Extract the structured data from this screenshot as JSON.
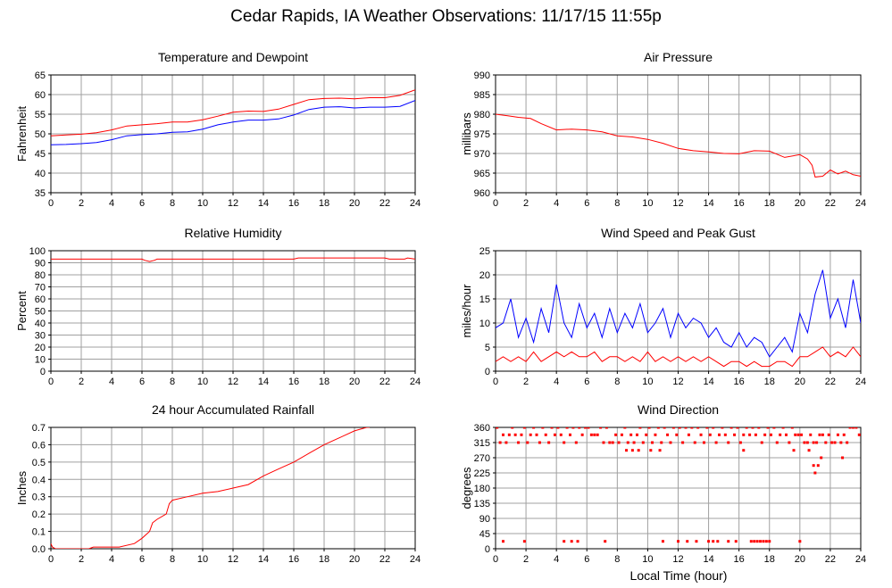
{
  "page": {
    "title": "Cedar Rapids, IA Weather Observations: 11/17/15 11:55p",
    "xlabel": "Local Time (hour)"
  },
  "chart_data": [
    {
      "type": "line",
      "title": "Temperature and Dewpoint",
      "ylabel": "Fahrenheit",
      "xlim": [
        0,
        24
      ],
      "ylim": [
        35,
        65
      ],
      "xticks": [
        0,
        2,
        4,
        6,
        8,
        10,
        12,
        14,
        16,
        18,
        20,
        22,
        24
      ],
      "yticks": [
        35,
        40,
        45,
        50,
        55,
        60,
        65
      ],
      "grid": true,
      "series": [
        {
          "color": "#ff0000",
          "x": [
            0,
            1,
            2,
            3,
            4,
            5,
            6,
            7,
            8,
            9,
            10,
            11,
            12,
            13,
            14,
            15,
            16,
            17,
            18,
            19,
            20,
            21,
            22,
            23,
            24
          ],
          "values": [
            49.5,
            49.7,
            49.9,
            50.3,
            51.0,
            52.0,
            52.3,
            52.6,
            53.0,
            53.0,
            53.6,
            54.5,
            55.5,
            55.8,
            55.7,
            56.3,
            57.5,
            58.7,
            59.0,
            59.1,
            58.9,
            59.2,
            59.2,
            59.8,
            61.2
          ]
        },
        {
          "color": "#0000ff",
          "x": [
            0,
            1,
            2,
            3,
            4,
            5,
            6,
            7,
            8,
            9,
            10,
            11,
            12,
            13,
            14,
            15,
            16,
            17,
            18,
            19,
            20,
            21,
            22,
            23,
            24
          ],
          "values": [
            47.2,
            47.3,
            47.5,
            47.8,
            48.5,
            49.5,
            49.8,
            50.0,
            50.4,
            50.5,
            51.2,
            52.3,
            53.0,
            53.5,
            53.5,
            53.8,
            54.8,
            56.2,
            56.8,
            56.9,
            56.6,
            56.8,
            56.8,
            57.0,
            58.5
          ]
        }
      ]
    },
    {
      "type": "line",
      "title": "Air Pressure",
      "ylabel": "millibars",
      "xlim": [
        0,
        24
      ],
      "ylim": [
        960,
        990
      ],
      "xticks": [
        0,
        2,
        4,
        6,
        8,
        10,
        12,
        14,
        16,
        18,
        20,
        22,
        24
      ],
      "yticks": [
        960,
        965,
        970,
        975,
        980,
        985,
        990
      ],
      "grid": true,
      "series": [
        {
          "color": "#ff0000",
          "x": [
            0,
            0.8,
            1.5,
            2.3,
            3.0,
            4.0,
            5.0,
            6.0,
            7.0,
            8.0,
            9.0,
            10.0,
            11.0,
            12.0,
            13.0,
            14.0,
            15.0,
            16.0,
            17.0,
            18.0,
            19.0,
            20.0,
            20.5,
            20.8,
            21.0,
            21.5,
            22.0,
            22.5,
            23.0,
            23.5,
            24.0
          ],
          "values": [
            980.0,
            979.6,
            979.2,
            978.9,
            977.6,
            976.0,
            976.2,
            976.0,
            975.5,
            974.5,
            974.2,
            973.6,
            972.6,
            971.3,
            970.7,
            970.4,
            970.0,
            969.9,
            970.7,
            970.6,
            969.0,
            969.7,
            968.6,
            967.0,
            964.0,
            964.2,
            965.8,
            964.8,
            965.5,
            964.6,
            964.2
          ]
        }
      ]
    },
    {
      "type": "line",
      "title": "Relative Humidity",
      "ylabel": "Percent",
      "xlim": [
        0,
        24
      ],
      "ylim": [
        0,
        100
      ],
      "xticks": [
        0,
        2,
        4,
        6,
        8,
        10,
        12,
        14,
        16,
        18,
        20,
        22,
        24
      ],
      "yticks": [
        0,
        10,
        20,
        30,
        40,
        50,
        60,
        70,
        80,
        90,
        100
      ],
      "grid": true,
      "series": [
        {
          "color": "#ff0000",
          "x": [
            0,
            6.0,
            6.2,
            6.5,
            6.8,
            7.0,
            16.0,
            16.3,
            22.0,
            22.3,
            23.3,
            23.5,
            24.0
          ],
          "values": [
            93,
            93,
            92,
            91,
            92,
            93,
            93,
            94,
            94,
            93,
            93,
            94,
            93
          ]
        }
      ]
    },
    {
      "type": "line",
      "title": "Wind Speed and Peak Gust",
      "ylabel": "miles/hour",
      "xlim": [
        0,
        24
      ],
      "ylim": [
        0,
        25
      ],
      "xticks": [
        0,
        2,
        4,
        6,
        8,
        10,
        12,
        14,
        16,
        18,
        20,
        22,
        24
      ],
      "yticks": [
        0,
        5,
        10,
        15,
        20,
        25
      ],
      "grid": true,
      "series": [
        {
          "color": "#0000ff",
          "x": [
            0,
            0.5,
            1.0,
            1.5,
            2.0,
            2.5,
            3.0,
            3.5,
            4.0,
            4.5,
            5.0,
            5.5,
            6.0,
            6.5,
            7.0,
            7.5,
            8.0,
            8.5,
            9.0,
            9.5,
            10.0,
            10.5,
            11.0,
            11.5,
            12.0,
            12.5,
            13.0,
            13.5,
            14.0,
            14.5,
            15.0,
            15.5,
            16.0,
            16.5,
            17.0,
            17.5,
            18.0,
            18.5,
            19.0,
            19.5,
            20.0,
            20.5,
            21.0,
            21.5,
            22.0,
            22.5,
            23.0,
            23.5,
            24.0
          ],
          "values": [
            9,
            10,
            15,
            7,
            11,
            6,
            13,
            8,
            18,
            10,
            7,
            14,
            9,
            12,
            7,
            13,
            8,
            12,
            9,
            14,
            8,
            10,
            13,
            7,
            12,
            9,
            11,
            10,
            7,
            9,
            6,
            5,
            8,
            5,
            7,
            6,
            3,
            5,
            7,
            4,
            12,
            8,
            16,
            21,
            11,
            15,
            9,
            19,
            10
          ]
        },
        {
          "color": "#ff0000",
          "x": [
            0,
            0.5,
            1.0,
            1.5,
            2.0,
            2.5,
            3.0,
            3.5,
            4.0,
            4.5,
            5.0,
            5.5,
            6.0,
            6.5,
            7.0,
            7.5,
            8.0,
            8.5,
            9.0,
            9.5,
            10.0,
            10.5,
            11.0,
            11.5,
            12.0,
            12.5,
            13.0,
            13.5,
            14.0,
            14.5,
            15.0,
            15.5,
            16.0,
            16.5,
            17.0,
            17.5,
            18.0,
            18.5,
            19.0,
            19.5,
            20.0,
            20.5,
            21.0,
            21.5,
            22.0,
            22.5,
            23.0,
            23.5,
            24.0
          ],
          "values": [
            2,
            3,
            2,
            3,
            2,
            4,
            2,
            3,
            4,
            3,
            4,
            3,
            3,
            4,
            2,
            3,
            3,
            2,
            3,
            2,
            4,
            2,
            3,
            2,
            3,
            2,
            3,
            2,
            3,
            2,
            1,
            2,
            2,
            1,
            2,
            1,
            1,
            2,
            2,
            1,
            3,
            3,
            4,
            5,
            3,
            4,
            3,
            5,
            3
          ]
        }
      ]
    },
    {
      "type": "line",
      "title": "24 hour Accumulated Rainfall",
      "ylabel": "Inches",
      "xlim": [
        0,
        24
      ],
      "ylim": [
        0,
        0.7
      ],
      "xticks": [
        0,
        2,
        4,
        6,
        8,
        10,
        12,
        14,
        16,
        18,
        20,
        22,
        24
      ],
      "yticks": [
        0,
        0.1,
        0.2,
        0.3,
        0.4,
        0.5,
        0.6,
        0.7
      ],
      "yticklabels": [
        "0.0",
        "0.1",
        "0.2",
        "0.3",
        "0.4",
        "0.5",
        "0.6",
        "0.7"
      ],
      "grid": true,
      "series": [
        {
          "color": "#ff0000",
          "x": [
            0,
            0.1,
            0.3,
            2.5,
            2.8,
            4.5,
            5.5,
            6.0,
            6.5,
            6.7,
            7.0,
            7.6,
            7.8,
            8.0,
            9.0,
            10.0,
            11.0,
            12.0,
            13.0,
            14.0,
            15.0,
            16.0,
            17.0,
            18.0,
            19.0,
            20.0,
            20.8,
            21.0
          ],
          "values": [
            0.03,
            0.01,
            0.0,
            0.0,
            0.01,
            0.01,
            0.03,
            0.06,
            0.1,
            0.15,
            0.17,
            0.2,
            0.26,
            0.28,
            0.3,
            0.32,
            0.33,
            0.35,
            0.37,
            0.42,
            0.46,
            0.5,
            0.55,
            0.6,
            0.64,
            0.68,
            0.7,
            0.7
          ]
        }
      ]
    },
    {
      "type": "scatter",
      "title": "Wind Direction",
      "ylabel": "degrees",
      "xlim": [
        0,
        24
      ],
      "ylim": [
        0,
        360
      ],
      "xticks": [
        0,
        2,
        4,
        6,
        8,
        10,
        12,
        14,
        16,
        18,
        20,
        22,
        24
      ],
      "yticks": [
        0,
        45,
        90,
        135,
        180,
        225,
        270,
        315,
        360
      ],
      "grid": true,
      "series": [
        {
          "color": "#ff0000",
          "x": [
            0.1,
            0.3,
            0.5,
            0.7,
            0.9,
            1.1,
            1.3,
            1.5,
            1.7,
            1.9,
            2.1,
            2.3,
            2.5,
            2.7,
            2.9,
            3.1,
            3.3,
            3.5,
            3.7,
            3.9,
            4.1,
            4.3,
            4.5,
            4.7,
            4.9,
            5.1,
            5.3,
            5.5,
            5.7,
            5.9,
            6.1,
            6.3,
            6.5,
            6.7,
            6.9,
            7.1,
            7.3,
            7.5,
            7.7,
            7.9,
            8.1,
            8.3,
            8.5,
            8.7,
            8.9,
            9.1,
            9.3,
            9.5,
            9.7,
            9.9,
            10.1,
            10.3,
            10.5,
            10.7,
            10.9,
            11.1,
            11.3,
            11.5,
            11.7,
            11.9,
            12.1,
            12.3,
            12.5,
            12.7,
            12.9,
            13.1,
            13.3,
            13.5,
            13.7,
            13.9,
            14.1,
            14.3,
            14.5,
            14.7,
            14.9,
            15.1,
            15.3,
            15.5,
            15.7,
            15.9,
            16.1,
            16.3,
            16.5,
            16.7,
            16.9,
            17.1,
            17.3,
            17.5,
            17.7,
            17.9,
            18.1,
            18.3,
            18.5,
            18.7,
            18.9,
            19.1,
            19.3,
            19.5,
            19.7,
            19.9,
            20.1,
            20.3,
            20.5,
            20.7,
            20.9,
            21.1,
            21.3,
            21.5,
            21.7,
            21.9,
            22.1,
            22.3,
            22.5,
            22.7,
            22.9,
            23.1,
            23.3,
            23.5,
            23.7,
            23.9,
            0.5,
            1.9,
            4.5,
            5.0,
            5.4,
            7.2,
            11.0,
            12.0,
            12.6,
            13.2,
            14.0,
            14.3,
            14.6,
            15.3,
            15.8,
            16.8,
            17.0,
            17.2,
            17.4,
            17.6,
            17.8,
            18.0,
            20.0,
            20.6,
            20.9,
            21.0,
            21.2,
            21.4,
            22.8,
            8.6,
            9.0,
            9.4,
            10.2,
            10.8,
            16.3,
            19.6
          ],
          "values": [
            360,
            315,
            338,
            315,
            338,
            360,
            338,
            315,
            338,
            360,
            315,
            338,
            360,
            338,
            315,
            360,
            338,
            315,
            360,
            338,
            360,
            338,
            315,
            360,
            338,
            360,
            315,
            360,
            338,
            360,
            360,
            338,
            338,
            338,
            360,
            315,
            360,
            315,
            315,
            338,
            315,
            338,
            360,
            315,
            338,
            315,
            338,
            360,
            315,
            338,
            360,
            315,
            338,
            360,
            315,
            360,
            338,
            315,
            360,
            338,
            360,
            315,
            360,
            338,
            360,
            315,
            360,
            338,
            315,
            360,
            338,
            360,
            315,
            338,
            360,
            338,
            315,
            360,
            338,
            360,
            315,
            338,
            360,
            338,
            360,
            338,
            360,
            315,
            338,
            360,
            338,
            360,
            315,
            338,
            360,
            338,
            315,
            360,
            338,
            338,
            338,
            315,
            315,
            338,
            315,
            315,
            338,
            338,
            315,
            338,
            315,
            315,
            338,
            315,
            338,
            315,
            360,
            360,
            360,
            338,
            22,
            22,
            22,
            22,
            22,
            22,
            22,
            22,
            22,
            22,
            22,
            22,
            22,
            22,
            22,
            22,
            22,
            22,
            22,
            22,
            22,
            22,
            22,
            292,
            247,
            225,
            247,
            270,
            270,
            292,
            292,
            292,
            292,
            292,
            292,
            292
          ]
        }
      ]
    }
  ]
}
